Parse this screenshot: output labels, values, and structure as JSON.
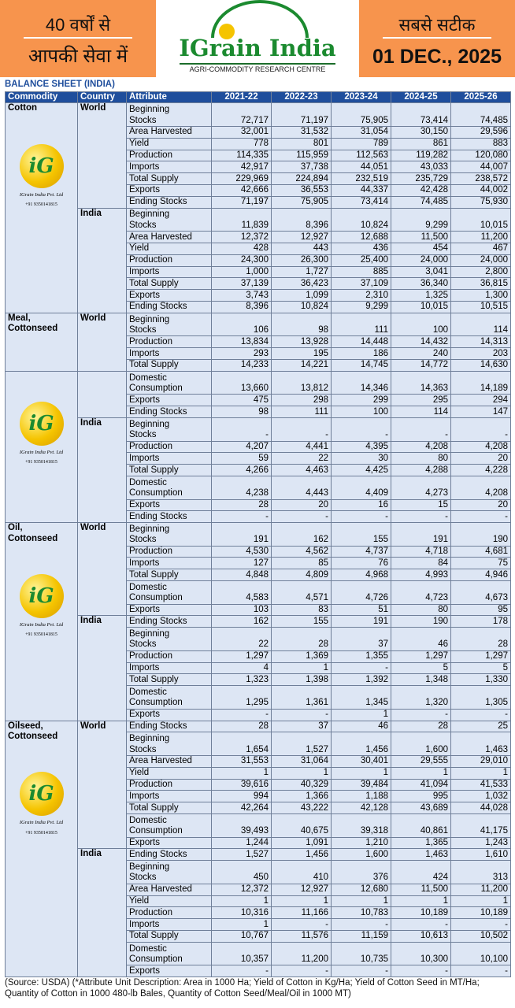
{
  "header": {
    "left_line1": "40 वर्षों से",
    "left_line2": "आपकी सेवा में",
    "brand": "IGrain India",
    "tagline": "AGRI-COMMODITY RESEARCH CENTRE",
    "right_line1": "सबसे सटीक",
    "date": "01 DEC., 2025"
  },
  "title": "BALANCE SHEET (INDIA)",
  "logo": {
    "mark": "iG",
    "name": "IGrain India Pvt. Ltd",
    "phone": "+91 9350141815"
  },
  "table": {
    "columns": [
      "Commodity",
      "Country",
      "Attribute",
      "2021-22",
      "2022-23",
      "2023-24",
      "2024-25",
      "2025-26"
    ],
    "groups": [
      {
        "commodity": "Cotton",
        "logo": true,
        "segments": [
          {
            "country": "World",
            "rows": [
              {
                "attribute": "Beginning\nStocks",
                "values": [
                  "72,717",
                  "71,197",
                  "75,905",
                  "73,414",
                  "74,485"
                ]
              },
              {
                "attribute": "Area Harvested",
                "values": [
                  "32,001",
                  "31,532",
                  "31,054",
                  "30,150",
                  "29,596"
                ]
              },
              {
                "attribute": "Yield",
                "values": [
                  "778",
                  "801",
                  "789",
                  "861",
                  "883"
                ]
              },
              {
                "attribute": "Production",
                "values": [
                  "114,335",
                  "115,959",
                  "112,563",
                  "119,282",
                  "120,080"
                ]
              },
              {
                "attribute": "Imports",
                "values": [
                  "42,917",
                  "37,738",
                  "44,051",
                  "43,033",
                  "44,007"
                ]
              },
              {
                "attribute": "Total Supply",
                "values": [
                  "229,969",
                  "224,894",
                  "232,519",
                  "235,729",
                  "238,572"
                ]
              },
              {
                "attribute": "Exports",
                "values": [
                  "42,666",
                  "36,553",
                  "44,337",
                  "42,428",
                  "44,002"
                ]
              },
              {
                "attribute": "Ending Stocks",
                "values": [
                  "71,197",
                  "75,905",
                  "73,414",
                  "74,485",
                  "75,930"
                ]
              }
            ]
          },
          {
            "country": "India",
            "rows": [
              {
                "attribute": "Beginning\nStocks",
                "values": [
                  "11,839",
                  "8,396",
                  "10,824",
                  "9,299",
                  "10,015"
                ]
              },
              {
                "attribute": "Area Harvested",
                "values": [
                  "12,372",
                  "12,927",
                  "12,688",
                  "11,500",
                  "11,200"
                ]
              },
              {
                "attribute": "Yield",
                "values": [
                  "428",
                  "443",
                  "436",
                  "454",
                  "467"
                ]
              },
              {
                "attribute": "Production",
                "values": [
                  "24,300",
                  "26,300",
                  "25,400",
                  "24,000",
                  "24,000"
                ]
              },
              {
                "attribute": "Imports",
                "values": [
                  "1,000",
                  "1,727",
                  "885",
                  "3,041",
                  "2,800"
                ]
              },
              {
                "attribute": "Total Supply",
                "values": [
                  "37,139",
                  "36,423",
                  "37,109",
                  "36,340",
                  "36,815"
                ]
              },
              {
                "attribute": "Exports",
                "values": [
                  "3,743",
                  "1,099",
                  "2,310",
                  "1,325",
                  "1,300"
                ]
              },
              {
                "attribute": "Ending Stocks",
                "values": [
                  "8,396",
                  "10,824",
                  "9,299",
                  "10,015",
                  "10,515"
                ]
              }
            ]
          }
        ]
      },
      {
        "commodity": "Meal,\nCottonseed",
        "logo": false,
        "segments": [
          {
            "country": "World",
            "rows": [
              {
                "attribute": "Beginning\nStocks",
                "values": [
                  "106",
                  "98",
                  "111",
                  "100",
                  "114"
                ]
              },
              {
                "attribute": "Production",
                "values": [
                  "13,834",
                  "13,928",
                  "14,448",
                  "14,432",
                  "14,313"
                ]
              },
              {
                "attribute": "Imports",
                "values": [
                  "293",
                  "195",
                  "186",
                  "240",
                  "203"
                ]
              },
              {
                "attribute": "Total Supply",
                "values": [
                  "14,233",
                  "14,221",
                  "14,745",
                  "14,772",
                  "14,630"
                ]
              }
            ]
          }
        ]
      },
      {
        "logo": true,
        "segments": [
          {
            "rows": [
              {
                "attribute": "Domestic\nConsumption",
                "values": [
                  "13,660",
                  "13,812",
                  "14,346",
                  "14,363",
                  "14,189"
                ]
              },
              {
                "attribute": "Exports",
                "values": [
                  "475",
                  "298",
                  "299",
                  "295",
                  "294"
                ]
              },
              {
                "attribute": "Ending Stocks",
                "values": [
                  "98",
                  "111",
                  "100",
                  "114",
                  "147"
                ]
              }
            ]
          },
          {
            "country": "India",
            "rows": [
              {
                "attribute": "Beginning\nStocks",
                "values": [
                  "-",
                  "-",
                  "-",
                  "-",
                  "-"
                ]
              },
              {
                "attribute": "Production",
                "values": [
                  "4,207",
                  "4,441",
                  "4,395",
                  "4,208",
                  "4,208"
                ]
              },
              {
                "attribute": "Imports",
                "values": [
                  "59",
                  "22",
                  "30",
                  "80",
                  "20"
                ]
              },
              {
                "attribute": "Total Supply",
                "values": [
                  "4,266",
                  "4,463",
                  "4,425",
                  "4,288",
                  "4,228"
                ]
              },
              {
                "attribute": "Domestic\nConsumption",
                "values": [
                  "4,238",
                  "4,443",
                  "4,409",
                  "4,273",
                  "4,208"
                ]
              },
              {
                "attribute": "Exports",
                "values": [
                  "28",
                  "20",
                  "16",
                  "15",
                  "20"
                ]
              },
              {
                "attribute": "Ending Stocks",
                "values": [
                  "-",
                  "-",
                  "-",
                  "-",
                  "-"
                ]
              }
            ]
          }
        ]
      },
      {
        "commodity": "Oil,\nCottonseed",
        "logo": true,
        "segments": [
          {
            "country": "World",
            "rows": [
              {
                "attribute": "Beginning\nStocks",
                "values": [
                  "191",
                  "162",
                  "155",
                  "191",
                  "190"
                ]
              },
              {
                "attribute": "Production",
                "values": [
                  "4,530",
                  "4,562",
                  "4,737",
                  "4,718",
                  "4,681"
                ]
              },
              {
                "attribute": "Imports",
                "values": [
                  "127",
                  "85",
                  "76",
                  "84",
                  "75"
                ]
              },
              {
                "attribute": "Total Supply",
                "values": [
                  "4,848",
                  "4,809",
                  "4,968",
                  "4,993",
                  "4,946"
                ]
              },
              {
                "attribute": "Domestic\nConsumption",
                "values": [
                  "4,583",
                  "4,571",
                  "4,726",
                  "4,723",
                  "4,673"
                ]
              },
              {
                "attribute": "Exports",
                "values": [
                  "103",
                  "83",
                  "51",
                  "80",
                  "95"
                ]
              }
            ]
          },
          {
            "country": "India",
            "rows": [
              {
                "attribute": "Ending Stocks",
                "values": [
                  "162",
                  "155",
                  "191",
                  "190",
                  "178"
                ]
              },
              {
                "attribute": "Beginning\nStocks",
                "values": [
                  "22",
                  "28",
                  "37",
                  "46",
                  "28"
                ]
              },
              {
                "attribute": "Production",
                "values": [
                  "1,297",
                  "1,369",
                  "1,355",
                  "1,297",
                  "1,297"
                ]
              },
              {
                "attribute": "Imports",
                "values": [
                  "4",
                  "1",
                  "-",
                  "5",
                  "5"
                ]
              },
              {
                "attribute": "Total Supply",
                "values": [
                  "1,323",
                  "1,398",
                  "1,392",
                  "1,348",
                  "1,330"
                ]
              },
              {
                "attribute": "Domestic\nConsumption",
                "values": [
                  "1,295",
                  "1,361",
                  "1,345",
                  "1,320",
                  "1,305"
                ]
              },
              {
                "attribute": "Exports",
                "values": [
                  "-",
                  "-",
                  "1",
                  "-",
                  "-"
                ]
              }
            ]
          }
        ]
      },
      {
        "commodity": "Oilseed,\nCottonseed",
        "logo": true,
        "segments": [
          {
            "country": "World",
            "rows": [
              {
                "attribute": "Ending Stocks",
                "values": [
                  "28",
                  "37",
                  "46",
                  "28",
                  "25"
                ]
              },
              {
                "attribute": "Beginning\nStocks",
                "values": [
                  "1,654",
                  "1,527",
                  "1,456",
                  "1,600",
                  "1,463"
                ]
              },
              {
                "attribute": "Area Harvested",
                "values": [
                  "31,553",
                  "31,064",
                  "30,401",
                  "29,555",
                  "29,010"
                ]
              },
              {
                "attribute": "Yield",
                "values": [
                  "1",
                  "1",
                  "1",
                  "1",
                  "1"
                ]
              },
              {
                "attribute": "Production",
                "values": [
                  "39,616",
                  "40,329",
                  "39,484",
                  "41,094",
                  "41,533"
                ]
              },
              {
                "attribute": "Imports",
                "values": [
                  "994",
                  "1,366",
                  "1,188",
                  "995",
                  "1,032"
                ]
              },
              {
                "attribute": "Total Supply",
                "values": [
                  "42,264",
                  "43,222",
                  "42,128",
                  "43,689",
                  "44,028"
                ]
              },
              {
                "attribute": "Domestic\nConsumption",
                "values": [
                  "39,493",
                  "40,675",
                  "39,318",
                  "40,861",
                  "41,175"
                ]
              },
              {
                "attribute": "Exports",
                "values": [
                  "1,244",
                  "1,091",
                  "1,210",
                  "1,365",
                  "1,243"
                ]
              }
            ]
          },
          {
            "country": "India",
            "rows": [
              {
                "attribute": "Ending Stocks",
                "values": [
                  "1,527",
                  "1,456",
                  "1,600",
                  "1,463",
                  "1,610"
                ]
              },
              {
                "attribute": "Beginning\nStocks",
                "values": [
                  "450",
                  "410",
                  "376",
                  "424",
                  "313"
                ]
              },
              {
                "attribute": "Area Harvested",
                "values": [
                  "12,372",
                  "12,927",
                  "12,680",
                  "11,500",
                  "11,200"
                ]
              },
              {
                "attribute": "Yield",
                "values": [
                  "1",
                  "1",
                  "1",
                  "1",
                  "1"
                ]
              },
              {
                "attribute": "Production",
                "values": [
                  "10,316",
                  "11,166",
                  "10,783",
                  "10,189",
                  "10,189"
                ]
              },
              {
                "attribute": "Imports",
                "values": [
                  "1",
                  "-",
                  "-",
                  "-",
                  "-"
                ]
              },
              {
                "attribute": "Total Supply",
                "values": [
                  "10,767",
                  "11,576",
                  "11,159",
                  "10,613",
                  "10,502"
                ]
              },
              {
                "attribute": "Domestic\nConsumption",
                "values": [
                  "10,357",
                  "11,200",
                  "10,735",
                  "10,300",
                  "10,100"
                ]
              },
              {
                "attribute": "Exports",
                "values": [
                  "-",
                  "-",
                  "-",
                  "-",
                  "-"
                ]
              }
            ]
          }
        ]
      }
    ]
  },
  "footer": "(Source: USDA) (*Attribute Unit Description: Area in 1000 Ha; Yield of Cotton in Kg/Ha; Yield of Cotton Seed in MT/Ha; Quantity of Cotton in 1000 480-lb Bales, Quantity of Cotton Seed/Meal/Oil in 1000 MT)"
}
